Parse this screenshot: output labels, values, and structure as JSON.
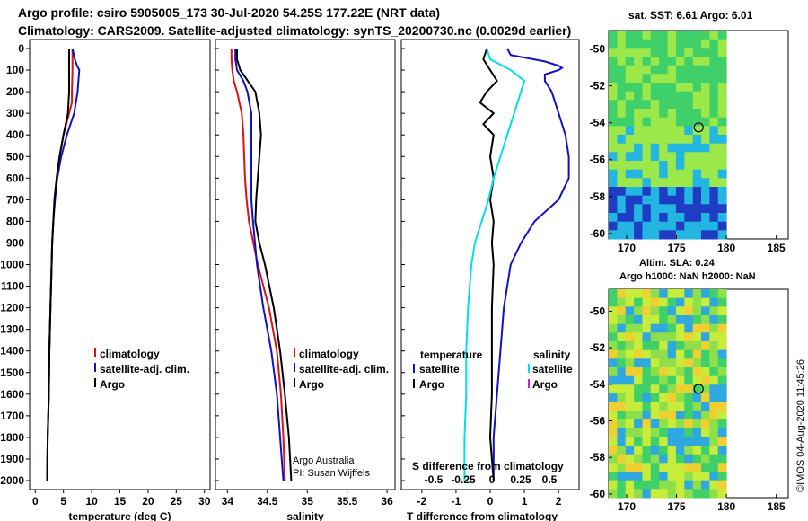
{
  "header": {
    "title_line1": "Argo profile: csiro 5905005_173 30-Jul-2020 54.25S 177.22E (NRT data)",
    "title_line2": "Climatology: CARS2009. Satellite-adjusted climatology: synTS_20200730.nc (0.0029d earlier)"
  },
  "maps": {
    "sst_title": "sat. SST: 6.61 Argo: 6.01",
    "sla_title_1": "Altim. SLA: 0.24",
    "sla_title_2": "Argo h1000: NaN h2000: NaN",
    "lon_ticks": [
      "170",
      "175",
      "180",
      "185"
    ],
    "lat_ticks": [
      "-50",
      "-52",
      "-54",
      "-56",
      "-58",
      "-60"
    ],
    "float_position": {
      "lon": 177.22,
      "lat": -54.25
    }
  },
  "footer": {
    "stamp": "©IMOS 04-Aug-2020 11:45:26",
    "credit_1": "Argo Australia",
    "credit_2": "PI: Susan Wijffels"
  },
  "colors": {
    "red": "#e01010",
    "blue": "#1010c8",
    "black": "#000000",
    "cyan": "#00e0e8",
    "magenta": "#d020d0"
  },
  "chart_data": [
    {
      "type": "line",
      "xlabel": "temperature (deg C)",
      "ylabel": "",
      "xlim": [
        -1,
        31
      ],
      "ylim": [
        2080,
        0
      ],
      "xticks": [
        0,
        5,
        10,
        15,
        20,
        25,
        30
      ],
      "yticks": [
        0,
        100,
        200,
        300,
        400,
        500,
        600,
        700,
        800,
        900,
        1000,
        1100,
        1200,
        1300,
        1400,
        1500,
        1600,
        1700,
        1800,
        1900,
        2000
      ],
      "legend": [
        {
          "label": "climatology",
          "color": "#e01010"
        },
        {
          "label": "satellite-adj. clim.",
          "color": "#1010c8"
        },
        {
          "label": "Argo",
          "color": "#000000"
        }
      ],
      "series": [
        {
          "name": "climatology",
          "color": "#e01010",
          "depth": [
            0,
            50,
            100,
            200,
            250,
            300,
            400,
            500,
            600,
            700,
            800,
            900,
            1000,
            1200,
            1400,
            1600,
            1800,
            2000
          ],
          "values": [
            6.6,
            6.6,
            6.6,
            6.5,
            6.5,
            6.0,
            5.0,
            4.3,
            3.8,
            3.4,
            3.2,
            3.0,
            2.9,
            2.7,
            2.5,
            2.4,
            2.2,
            2.1
          ]
        },
        {
          "name": "satellite-adj. clim.",
          "color": "#1010c8",
          "depth": [
            0,
            50,
            80,
            100,
            200,
            300,
            400,
            500,
            600,
            700,
            800,
            900,
            1000,
            1200,
            1400,
            1600,
            1800,
            2000
          ],
          "values": [
            6.6,
            7.0,
            7.4,
            7.8,
            7.5,
            6.9,
            5.6,
            4.6,
            3.9,
            3.5,
            3.2,
            3.0,
            2.9,
            2.7,
            2.5,
            2.4,
            2.2,
            2.1
          ]
        },
        {
          "name": "Argo",
          "color": "#000000",
          "depth": [
            0,
            100,
            200,
            300,
            400,
            500,
            600,
            700,
            800,
            900,
            1000,
            1100,
            1200,
            1400,
            1600,
            1800,
            2000
          ],
          "values": [
            6.0,
            6.0,
            6.0,
            5.8,
            5.0,
            4.3,
            3.8,
            3.4,
            3.2,
            3.0,
            2.9,
            2.8,
            2.7,
            2.5,
            2.4,
            2.2,
            2.1
          ]
        }
      ]
    },
    {
      "type": "line",
      "xlabel": "salinity",
      "ylabel": "",
      "xlim": [
        33.85,
        36.1
      ],
      "ylim": [
        2080,
        0
      ],
      "xticks": [
        34,
        34.5,
        35,
        35.5,
        36
      ],
      "legend": [
        {
          "label": "climatology",
          "color": "#e01010"
        },
        {
          "label": "satellite-adj. clim.",
          "color": "#1010c8"
        },
        {
          "label": "Argo",
          "color": "#000000"
        }
      ],
      "series": [
        {
          "name": "climatology",
          "color": "#e01010",
          "depth": [
            0,
            50,
            100,
            150,
            200,
            300,
            400,
            500,
            600,
            700,
            800,
            1000,
            1200,
            1400,
            1600,
            1800,
            2000
          ],
          "values": [
            34.05,
            34.05,
            34.06,
            34.08,
            34.12,
            34.18,
            34.2,
            34.21,
            34.22,
            34.24,
            34.27,
            34.38,
            34.52,
            34.62,
            34.67,
            34.7,
            34.72
          ]
        },
        {
          "name": "satellite-adj. clim.",
          "color": "#1010c8",
          "depth": [
            0,
            50,
            100,
            150,
            200,
            300,
            400,
            500,
            600,
            700,
            800,
            1000,
            1200,
            1400,
            1600,
            1800,
            2000
          ],
          "values": [
            34.1,
            34.1,
            34.12,
            34.2,
            34.25,
            34.3,
            34.3,
            34.3,
            34.3,
            34.3,
            34.32,
            34.37,
            34.45,
            34.55,
            34.62,
            34.66,
            34.7
          ]
        },
        {
          "name": "Argo",
          "color": "#000000",
          "depth": [
            0,
            50,
            100,
            200,
            300,
            400,
            500,
            600,
            700,
            800,
            900,
            1000,
            1200,
            1400,
            1600,
            1800,
            2000
          ],
          "values": [
            34.12,
            34.12,
            34.16,
            34.35,
            34.4,
            34.42,
            34.4,
            34.38,
            34.36,
            34.35,
            34.4,
            34.47,
            34.58,
            34.66,
            34.72,
            34.77,
            34.8
          ]
        }
      ]
    },
    {
      "type": "line",
      "xlabel": "T difference from climatology",
      "ylabel": "",
      "xlim": [
        -2.6,
        2.6
      ],
      "ylim": [
        2080,
        0
      ],
      "xticks": [
        -2,
        -1,
        0,
        1,
        2
      ],
      "secondary_axis": {
        "label": "S difference from climatology",
        "ticks": [
          "-0.5",
          "-0.25",
          "0",
          "0.25",
          "0.5"
        ]
      },
      "legend": [
        {
          "label": "temperature",
          "color": "#000000"
        },
        {
          "label": "satellite",
          "color": "#1010c8"
        },
        {
          "label": "Argo",
          "color": "#000000"
        },
        {
          "label": "salinity",
          "color": "#000000"
        },
        {
          "label": "satellite",
          "color": "#00e0e8"
        },
        {
          "label": "Argo",
          "color": "#d020d0"
        }
      ],
      "series": [
        {
          "name": "temperature satellite",
          "color": "#1010c8",
          "depth": [
            0,
            30,
            60,
            80,
            90,
            100,
            120,
            150,
            200,
            300,
            400,
            500,
            600,
            700,
            800,
            900,
            1000,
            1200,
            1400,
            1600,
            1800,
            2000
          ],
          "values": [
            0.5,
            0.6,
            1.6,
            2.0,
            2.1,
            2.0,
            1.6,
            1.6,
            1.8,
            2.0,
            2.2,
            2.3,
            2.3,
            2.0,
            1.3,
            0.9,
            0.6,
            0.4,
            0.3,
            0.2,
            0.1,
            0.1
          ]
        },
        {
          "name": "temperature Argo",
          "color": "#000000",
          "depth": [
            0,
            50,
            100,
            150,
            200,
            250,
            300,
            350,
            400,
            500,
            600,
            700,
            800,
            900,
            1000,
            1200,
            1400,
            1600,
            1800,
            2000
          ],
          "values": [
            -0.1,
            -0.2,
            0.0,
            0.2,
            -0.1,
            -0.3,
            0.1,
            -0.2,
            0.1,
            0.0,
            0.1,
            0.0,
            0.1,
            0.05,
            0.1,
            0.05,
            0.05,
            0.05,
            0.0,
            0.1
          ]
        },
        {
          "name": "salinity satellite",
          "color": "#00e0e8",
          "depth": [
            0,
            50,
            100,
            150,
            200,
            300,
            400,
            500,
            600,
            700,
            800,
            900,
            1000,
            1200,
            1400,
            1600,
            1800,
            2000
          ],
          "values": [
            -0.1,
            0.0,
            0.6,
            1.0,
            0.9,
            0.7,
            0.5,
            0.3,
            0.1,
            -0.05,
            -0.25,
            -0.45,
            -0.55,
            -0.65,
            -0.7,
            -0.7,
            -0.75,
            -0.75
          ]
        }
      ]
    }
  ]
}
